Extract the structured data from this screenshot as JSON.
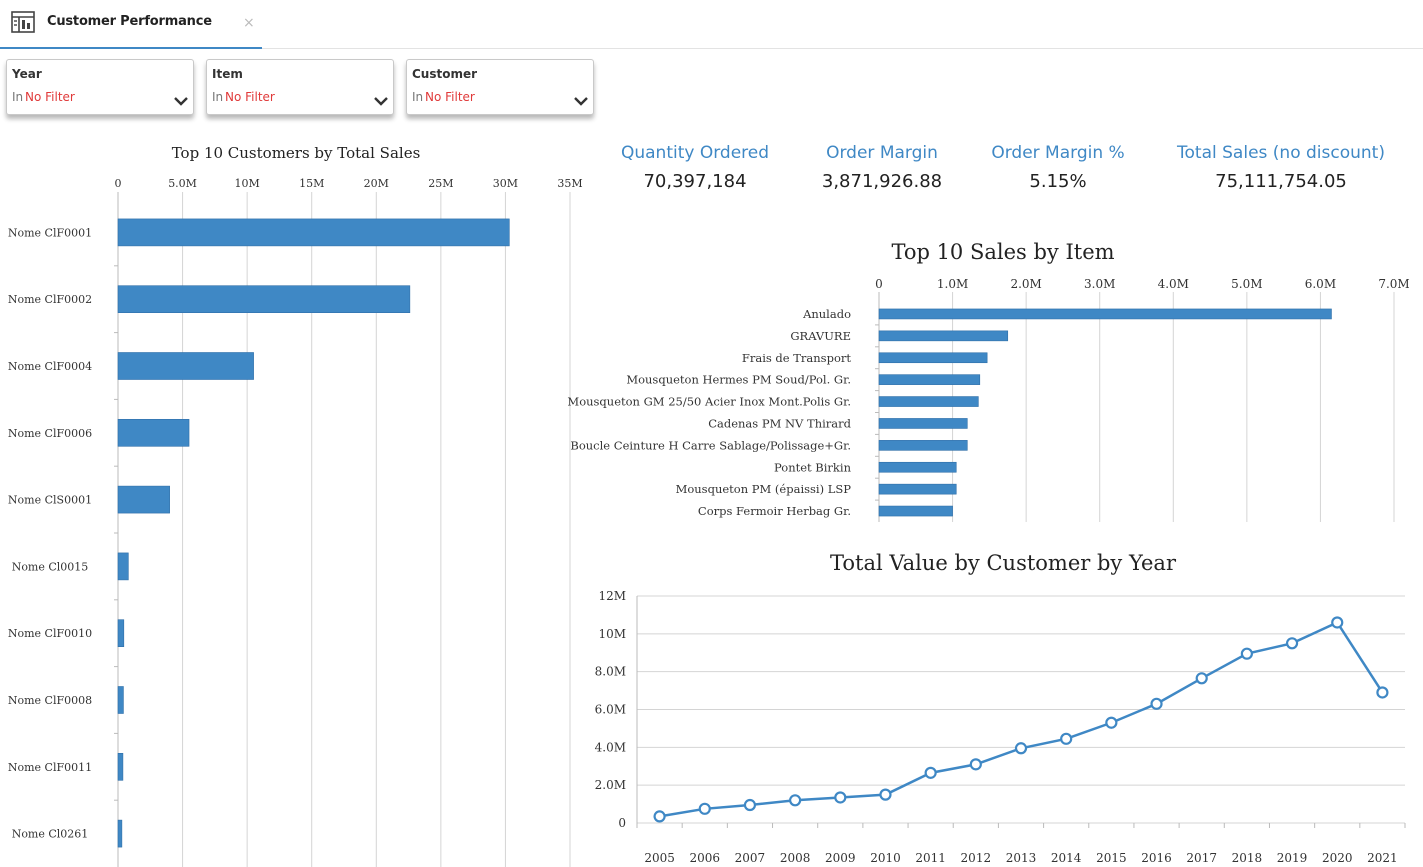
{
  "tab": {
    "title": "Customer Performance",
    "close": "×",
    "icon": "dashboard-icon"
  },
  "filters": [
    {
      "label": "Year",
      "prefix": "In",
      "value": "No Filter"
    },
    {
      "label": "Item",
      "prefix": "In",
      "value": "No Filter"
    },
    {
      "label": "Customer",
      "prefix": "In",
      "value": "No Filter"
    }
  ],
  "kpis": [
    {
      "label": "Quantity Ordered",
      "value": "70,397,184"
    },
    {
      "label": "Order Margin",
      "value": "3,871,926.88"
    },
    {
      "label": "Order Margin %",
      "value": "5.15%"
    },
    {
      "label": "Total Sales (no discount)",
      "value": "75,111,754.05"
    }
  ],
  "colors": {
    "accent": "#3f88c5",
    "bar": "#3f88c5",
    "filter_value": "#e03a3a"
  },
  "chart_data": [
    {
      "type": "bar",
      "orientation": "horizontal",
      "title": "Top 10 Customers by Total Sales",
      "categories": [
        "Nome ClF0001",
        "Nome ClF0002",
        "Nome ClF0004",
        "Nome ClF0006",
        "Nome ClS0001",
        "Nome Cl0015",
        "Nome ClF0010",
        "Nome ClF0008",
        "Nome ClF0011",
        "Nome Cl0261"
      ],
      "values": [
        30.3,
        22.6,
        10.5,
        5.5,
        4.0,
        0.8,
        0.45,
        0.42,
        0.38,
        0.3
      ],
      "value_unit": "M",
      "xlim": [
        0,
        35
      ],
      "xticks": [
        0,
        5,
        10,
        15,
        20,
        25,
        30,
        35
      ],
      "xtick_labels": [
        "0",
        "5.0M",
        "10M",
        "15M",
        "20M",
        "25M",
        "30M",
        "35M"
      ],
      "axis_position": "top",
      "grid": true
    },
    {
      "type": "bar",
      "orientation": "horizontal",
      "title": "Top 10 Sales by Item",
      "categories": [
        "Anulado",
        "GRAVURE",
        "Frais de Transport",
        "Mousqueton Hermes PM Soud/Pol. Gr.",
        "Mousqueton GM 25/50 Acier Inox Mont.Polis Gr.",
        "Cadenas PM NV Thirard",
        "Boucle Ceinture H Carre Sablage/Polissage+Gr.",
        "Pontet Birkin",
        "Mousqueton PM (épaissi) LSP",
        "Corps Fermoir Herbag Gr."
      ],
      "values": [
        6.15,
        1.75,
        1.47,
        1.37,
        1.35,
        1.2,
        1.2,
        1.05,
        1.05,
        1.0
      ],
      "value_unit": "M",
      "xlim": [
        0,
        7
      ],
      "xticks": [
        0,
        1,
        2,
        3,
        4,
        5,
        6,
        7
      ],
      "xtick_labels": [
        "0",
        "1.0M",
        "2.0M",
        "3.0M",
        "4.0M",
        "5.0M",
        "6.0M",
        "7.0M"
      ],
      "axis_position": "top",
      "grid": true
    },
    {
      "type": "line",
      "title": "Total Value by Customer by Year",
      "x": [
        "2005",
        "2006",
        "2007",
        "2008",
        "2009",
        "2010",
        "2011",
        "2012",
        "2013",
        "2014",
        "2015",
        "2016",
        "2017",
        "2018",
        "2019",
        "2020",
        "2021"
      ],
      "values": [
        0.35,
        0.75,
        0.95,
        1.2,
        1.35,
        1.5,
        2.65,
        3.1,
        3.95,
        4.45,
        5.3,
        6.3,
        7.65,
        8.95,
        9.5,
        10.6,
        6.9
      ],
      "value_unit": "M",
      "ylim": [
        0,
        12
      ],
      "yticks": [
        0,
        2,
        4,
        6,
        8,
        10,
        12
      ],
      "ytick_labels": [
        "0",
        "2.0M",
        "4.0M",
        "6.0M",
        "8.0M",
        "10M",
        "12M"
      ],
      "grid": true
    }
  ]
}
